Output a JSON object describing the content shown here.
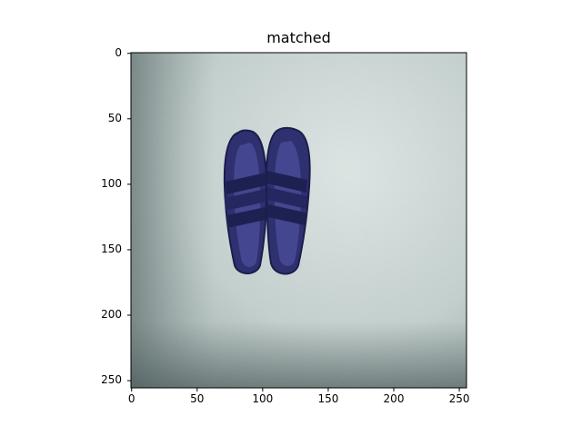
{
  "figure": {
    "title": "matched",
    "image_description_icon": "sandals-photo",
    "x_ticks": [
      "0",
      "50",
      "100",
      "150",
      "200",
      "250"
    ],
    "y_ticks": [
      "0",
      "50",
      "100",
      "150",
      "200",
      "250"
    ],
    "x_tick_values": [
      0,
      50,
      100,
      150,
      200,
      250
    ],
    "y_tick_values": [
      0,
      50,
      100,
      150,
      200,
      250
    ],
    "extent": [
      0,
      256
    ],
    "colors": {
      "floor_light": "#d8e2e0",
      "floor_mid": "#b8c7c6",
      "floor_dark": "#6f807f",
      "sandal": "#2f3070",
      "sandal_dark": "#1c1d4a",
      "sole_bed": "#44468f"
    }
  }
}
